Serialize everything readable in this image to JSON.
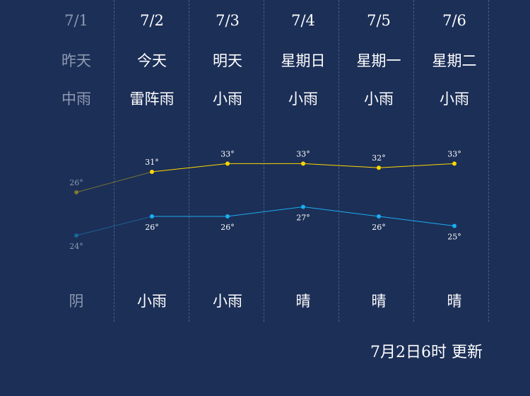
{
  "days": [
    {
      "date": "7/1",
      "label": "昨天",
      "day_weather": "中雨",
      "night_weather": "阴",
      "past": true
    },
    {
      "date": "7/2",
      "label": "今天",
      "day_weather": "雷阵雨",
      "night_weather": "小雨"
    },
    {
      "date": "7/3",
      "label": "明天",
      "day_weather": "小雨",
      "night_weather": "小雨"
    },
    {
      "date": "7/4",
      "label": "星期日",
      "day_weather": "小雨",
      "night_weather": "晴"
    },
    {
      "date": "7/5",
      "label": "星期一",
      "day_weather": "小雨",
      "night_weather": "晴"
    },
    {
      "date": "7/6",
      "label": "星期二",
      "day_weather": "小雨",
      "night_weather": "晴"
    }
  ],
  "chart_data": {
    "type": "line",
    "categories": [
      "7/1",
      "7/2",
      "7/3",
      "7/4",
      "7/5",
      "7/6"
    ],
    "series": [
      {
        "values": [
          26,
          31,
          33,
          33,
          32,
          33
        ],
        "color": "#ffd700",
        "unit": "°"
      },
      {
        "values": [
          24,
          26,
          26,
          27,
          26,
          25
        ],
        "color": "#1aaef0",
        "unit": "°"
      }
    ]
  },
  "update_text": "7月2日6时 更新",
  "colors": {
    "background": "#1c2f57",
    "past": "#8e9ab2"
  }
}
